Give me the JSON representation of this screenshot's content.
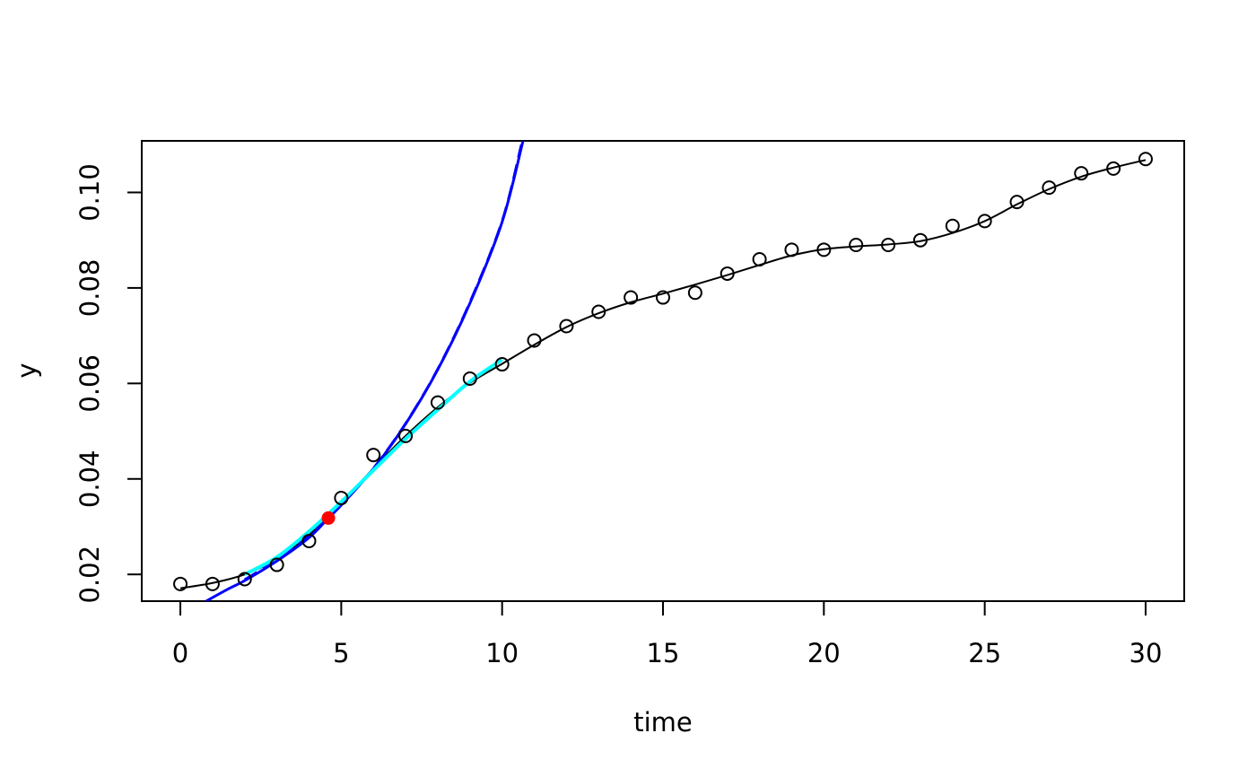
{
  "chart_data": {
    "type": "scatter",
    "title": "",
    "xlabel": "time",
    "ylabel": "y",
    "xlim": [
      -1.2,
      31.2
    ],
    "ylim": [
      0.0144,
      0.1108
    ],
    "x_ticks": [
      0,
      5,
      10,
      15,
      20,
      25,
      30
    ],
    "x_tick_labels": [
      "0",
      "5",
      "10",
      "15",
      "20",
      "25",
      "30"
    ],
    "y_ticks": [
      0.02,
      0.04,
      0.06,
      0.08,
      0.1
    ],
    "y_tick_labels": [
      "0.02",
      "0.04",
      "0.06",
      "0.08",
      "0.10"
    ],
    "grid": false,
    "legend": "none",
    "series": [
      {
        "kind": "points",
        "x": [
          0,
          1,
          2,
          3,
          4,
          5,
          6,
          7,
          8,
          9,
          10,
          11,
          12,
          13,
          14,
          15,
          16,
          17,
          18,
          19,
          20,
          21,
          22,
          23,
          24,
          25,
          26,
          27,
          28,
          29,
          30
        ],
        "y": [
          0.018,
          0.018,
          0.019,
          0.022,
          0.027,
          0.036,
          0.045,
          0.049,
          0.056,
          0.061,
          0.064,
          0.069,
          0.072,
          0.075,
          0.078,
          0.078,
          0.079,
          0.083,
          0.086,
          0.088,
          0.088,
          0.089,
          0.089,
          0.09,
          0.093,
          0.094,
          0.098,
          0.101,
          0.104,
          0.105,
          0.107
        ],
        "color": "#000000"
      },
      {
        "kind": "smooth-line",
        "x": [
          0,
          1,
          2,
          3,
          4,
          5,
          6,
          7,
          8,
          9,
          10,
          11,
          12,
          13,
          14,
          15,
          16,
          17,
          18,
          19,
          20,
          21,
          22,
          23,
          24,
          25,
          26,
          27,
          28,
          29,
          30
        ],
        "y": [
          0.0171,
          0.0182,
          0.02,
          0.0232,
          0.0283,
          0.035,
          0.0422,
          0.049,
          0.055,
          0.0601,
          0.0641,
          0.0681,
          0.0718,
          0.0747,
          0.077,
          0.0788,
          0.0807,
          0.0827,
          0.0848,
          0.0868,
          0.0881,
          0.0887,
          0.0891,
          0.0898,
          0.0915,
          0.094,
          0.0975,
          0.1007,
          0.1033,
          0.1052,
          0.1068
        ],
        "color": "#000000"
      },
      {
        "kind": "exponential-line",
        "x": [
          0.8,
          1.5,
          2,
          3,
          4,
          4.6,
          5,
          6,
          7,
          8,
          9,
          10,
          10.65
        ],
        "y": [
          0.0144,
          0.017,
          0.0187,
          0.0228,
          0.0277,
          0.0318,
          0.0345,
          0.0421,
          0.0515,
          0.0629,
          0.0768,
          0.0938,
          0.1108
        ],
        "color": "#0000ff"
      },
      {
        "kind": "exponential-line-dashed",
        "x": [
          2,
          3,
          4,
          4.6,
          5,
          6,
          7,
          8,
          9,
          10,
          10.6
        ],
        "y": [
          0.0189,
          0.023,
          0.028,
          0.0318,
          0.0346,
          0.0422,
          0.0516,
          0.063,
          0.077,
          0.094,
          0.11
        ],
        "color": "#0000ff"
      },
      {
        "kind": "fit-window",
        "x": [
          2,
          3,
          4,
          5,
          6,
          7,
          8,
          9,
          10
        ],
        "y": [
          0.02,
          0.0236,
          0.029,
          0.0352,
          0.0418,
          0.0484,
          0.0545,
          0.0604,
          0.065
        ],
        "color": "#00ffff"
      },
      {
        "kind": "max-growth-point",
        "x": [
          4.6
        ],
        "y": [
          0.0318
        ],
        "color": "#ff0000"
      }
    ]
  }
}
